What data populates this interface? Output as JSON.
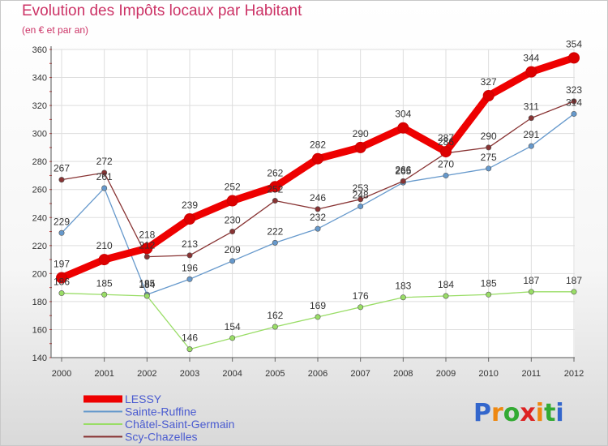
{
  "chart_data": {
    "type": "line",
    "title": "Evolution des Impôts locaux par Habitant",
    "subtitle": "(en € et par an)",
    "x": [
      "2000",
      "2001",
      "2002",
      "2003",
      "2004",
      "2005",
      "2006",
      "2007",
      "2008",
      "2009",
      "2010",
      "2011",
      "2012"
    ],
    "ylim": [
      140,
      360
    ],
    "yticks": [
      140,
      160,
      180,
      200,
      220,
      240,
      260,
      280,
      300,
      320,
      340,
      360
    ],
    "grid": true,
    "legend_position": "bottom-left",
    "series": [
      {
        "name": "LESSY",
        "color": "#ee0000",
        "values": [
          197,
          210,
          218,
          239,
          252,
          262,
          282,
          290,
          304,
          287,
          327,
          344,
          354
        ]
      },
      {
        "name": "Sainte-Ruffine",
        "color": "#6699cc",
        "values": [
          229,
          261,
          185,
          196,
          209,
          222,
          232,
          248,
          265,
          270,
          275,
          291,
          314
        ]
      },
      {
        "name": "Châtel-Saint-Germain",
        "color": "#99dd66",
        "values": [
          186,
          185,
          184,
          146,
          154,
          162,
          169,
          176,
          183,
          184,
          185,
          187,
          187
        ]
      },
      {
        "name": "Scy-Chazelles",
        "color": "#883333",
        "values": [
          267,
          272,
          212,
          213,
          230,
          252,
          246,
          253,
          266,
          286,
          290,
          311,
          323
        ]
      }
    ]
  },
  "watermark": {
    "text": "Proxiti",
    "letter_colors": [
      "#3366cc",
      "#ee8811",
      "#33aa33",
      "#dd2222",
      "#ee8811",
      "#33aa33",
      "#3366cc"
    ]
  }
}
